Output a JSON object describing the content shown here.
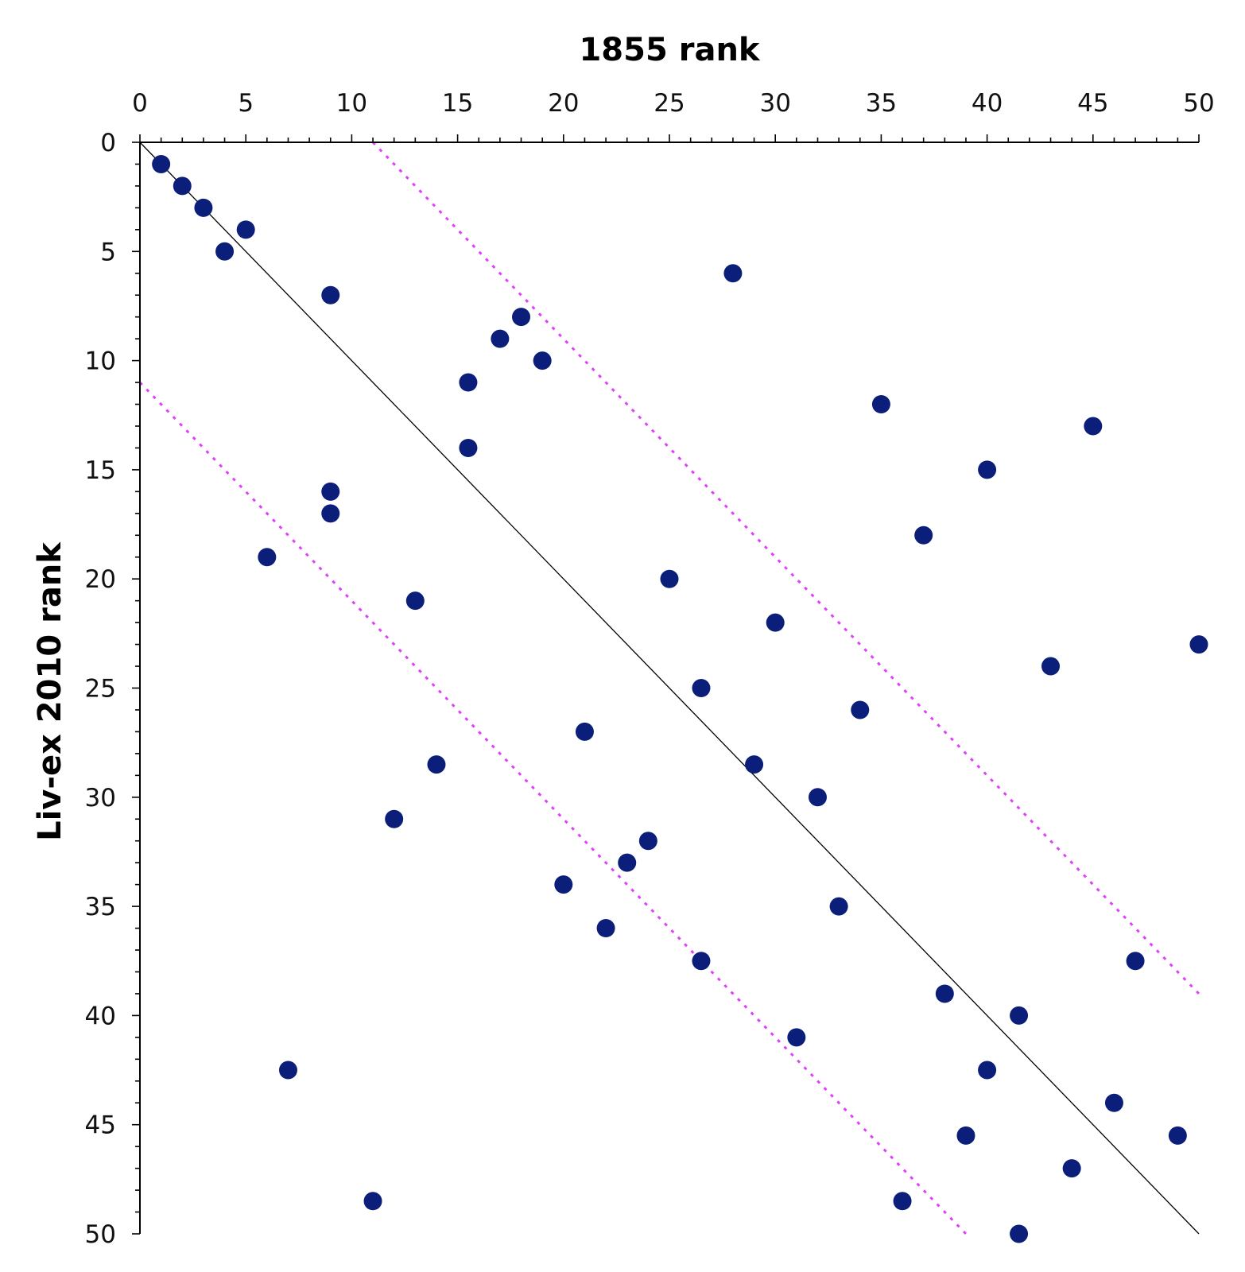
{
  "chart_data": {
    "type": "scatter",
    "title": "",
    "xlabel": "1855 rank",
    "ylabel": "Liv-ex 2010 rank",
    "xlim": [
      0,
      50
    ],
    "ylim": [
      0,
      50
    ],
    "y_inverted": true,
    "x_axis_position": "top",
    "grid": false,
    "legend": "none",
    "x_ticks": [
      0,
      5,
      10,
      15,
      20,
      25,
      30,
      35,
      40,
      45,
      50
    ],
    "y_ticks": [
      0,
      5,
      10,
      15,
      20,
      25,
      30,
      35,
      40,
      45,
      50
    ],
    "points": [
      [
        1,
        1
      ],
      [
        2,
        2
      ],
      [
        3,
        3
      ],
      [
        5,
        4
      ],
      [
        4,
        5
      ],
      [
        28,
        6
      ],
      [
        9,
        7
      ],
      [
        18,
        8
      ],
      [
        17,
        9
      ],
      [
        19,
        10
      ],
      [
        15.5,
        11
      ],
      [
        35,
        12
      ],
      [
        45,
        13
      ],
      [
        15.5,
        14
      ],
      [
        40,
        15
      ],
      [
        9,
        16
      ],
      [
        9,
        17
      ],
      [
        37,
        18
      ],
      [
        6,
        19
      ],
      [
        25,
        20
      ],
      [
        13,
        21
      ],
      [
        30,
        22
      ],
      [
        50,
        23
      ],
      [
        43,
        24
      ],
      [
        26.5,
        25
      ],
      [
        34,
        26
      ],
      [
        21,
        27
      ],
      [
        29,
        28.5
      ],
      [
        14,
        28.5
      ],
      [
        32,
        30
      ],
      [
        12,
        31
      ],
      [
        24,
        32
      ],
      [
        23,
        33
      ],
      [
        20,
        34
      ],
      [
        33,
        35
      ],
      [
        22,
        36
      ],
      [
        26.5,
        37.5
      ],
      [
        47,
        37.5
      ],
      [
        38,
        39
      ],
      [
        41.5,
        40
      ],
      [
        31,
        41
      ],
      [
        7,
        42.5
      ],
      [
        40,
        42.5
      ],
      [
        46,
        44
      ],
      [
        39,
        45.5
      ],
      [
        49,
        45.5
      ],
      [
        44,
        47
      ],
      [
        11,
        48.5
      ],
      [
        36,
        48.5
      ],
      [
        41.5,
        50
      ]
    ],
    "lines": [
      {
        "kind": "identity",
        "color": "#000000",
        "style": "solid",
        "points": [
          [
            0,
            0
          ],
          [
            50,
            50
          ]
        ]
      },
      {
        "kind": "upper-band",
        "color": "#e040fb",
        "style": "dotted",
        "points": [
          [
            11,
            0
          ],
          [
            50,
            39
          ]
        ]
      },
      {
        "kind": "lower-band",
        "color": "#e040fb",
        "style": "dotted",
        "points": [
          [
            0,
            11
          ],
          [
            39,
            50
          ]
        ]
      }
    ],
    "marker_color": "#0b1f7a"
  }
}
